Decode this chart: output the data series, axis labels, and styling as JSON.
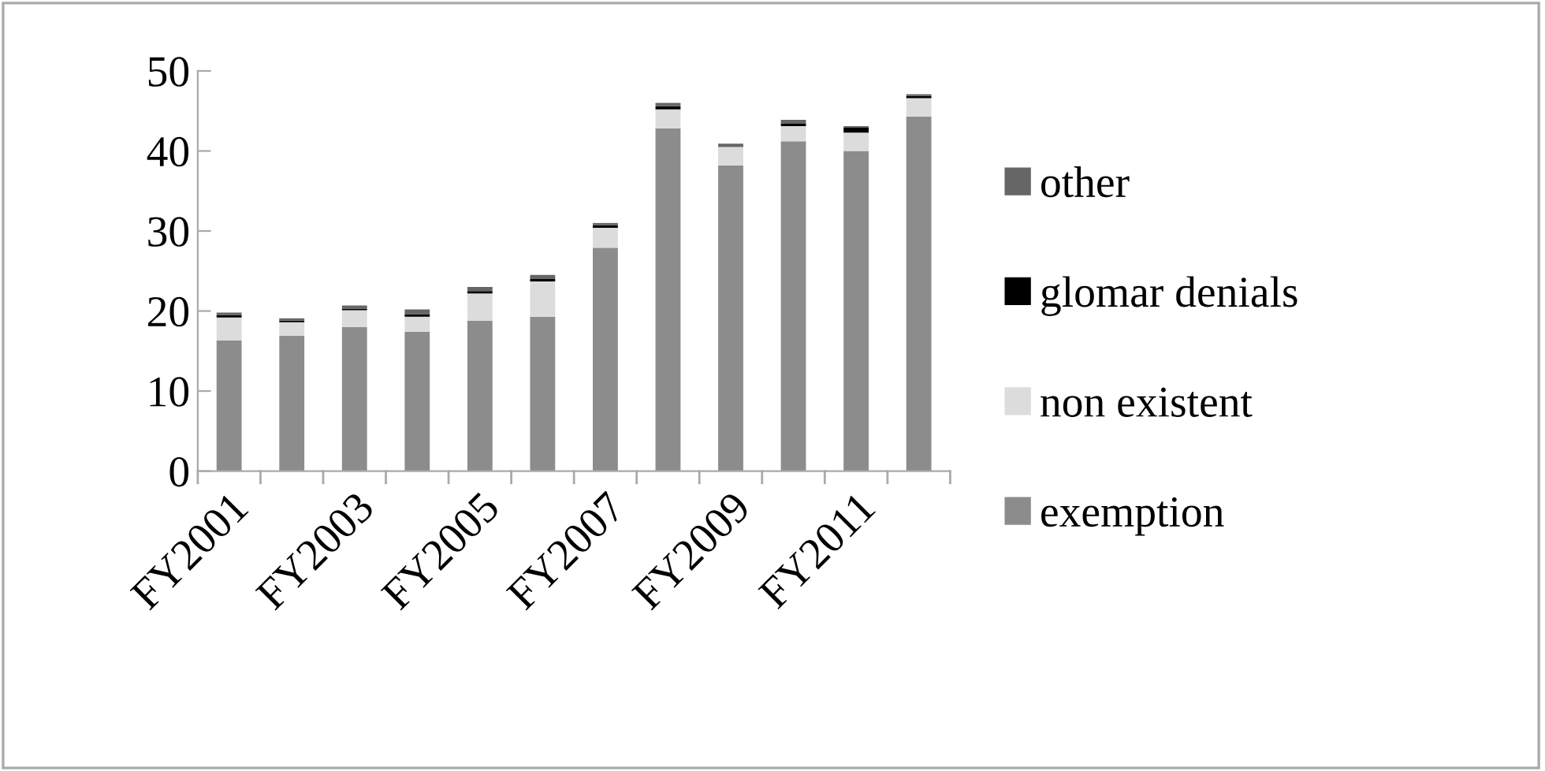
{
  "chart_data": {
    "type": "bar",
    "stacked": true,
    "categories": [
      "FY2001",
      null,
      "FY2003",
      null,
      "FY2005",
      null,
      "FY2007",
      null,
      "FY2009",
      null,
      "FY2011",
      null
    ],
    "series": [
      {
        "name": "exemption",
        "color": "#8c8c8c",
        "values": [
          16.3,
          16.9,
          18.0,
          17.4,
          18.8,
          19.3,
          27.9,
          42.8,
          38.2,
          41.2,
          40.0,
          44.3
        ]
      },
      {
        "name": "non existent",
        "color": "#dcdcdc",
        "values": [
          2.9,
          1.7,
          2.1,
          1.9,
          3.4,
          4.4,
          2.5,
          2.4,
          2.3,
          1.9,
          2.3,
          2.3
        ]
      },
      {
        "name": "glomar denials",
        "color": "#000000",
        "values": [
          0.3,
          0.2,
          0.2,
          0.3,
          0.3,
          0.3,
          0.3,
          0.4,
          0.0,
          0.3,
          0.6,
          0.3
        ]
      },
      {
        "name": "other",
        "color": "#666666",
        "values": [
          0.3,
          0.3,
          0.4,
          0.6,
          0.5,
          0.5,
          0.3,
          0.4,
          0.4,
          0.5,
          0.2,
          0.2
        ]
      }
    ],
    "ylim": [
      0,
      50
    ],
    "yticks": [
      0,
      10,
      20,
      30,
      40,
      50
    ],
    "grid": false,
    "legend": "right"
  }
}
